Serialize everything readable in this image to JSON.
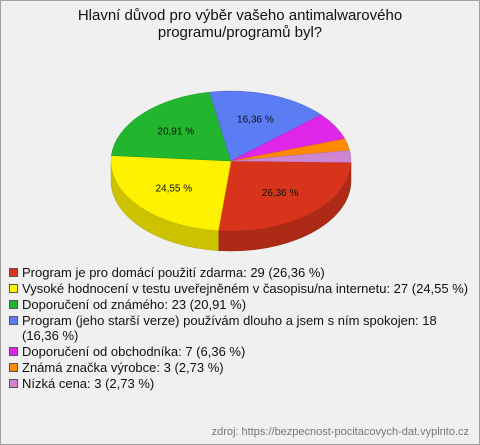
{
  "chart_data": {
    "type": "pie",
    "title": "Hlavní důvod pro výběr vašeho antimalwarového programu/programů byl?",
    "categories": [
      "Program je pro domácí použití zdarma: 29 (26,36 %)",
      "Vysoké hodnocení v testu uveřejněném v časopisu/na internetu: 27 (24,55 %)",
      "Doporučení od známého: 23 (20,91 %)",
      "Program (jeho starší verze) používám dlouho a jsem s ním spokojen: 18 (16,36 %)",
      "Doporučení od obchodníka: 7 (6,36 %)",
      "Známá značka výrobce: 3 (2,73 %)",
      "Nízká cena: 3 (2,73 %)"
    ],
    "values": [
      26.36,
      24.55,
      20.91,
      16.36,
      6.36,
      2.73,
      2.73
    ],
    "value_labels": [
      "26,36 %",
      "24,55 %",
      "20,91 %",
      "16,36 %",
      null,
      null,
      null
    ],
    "colors": [
      "#d8341c",
      "#fff200",
      "#22b52e",
      "#5b7cf2",
      "#e026e8",
      "#ff8a00",
      "#cf86d2"
    ],
    "source": "zdroj: https://bezpecnost-pocitacovych-dat.vyplnto.cz"
  }
}
